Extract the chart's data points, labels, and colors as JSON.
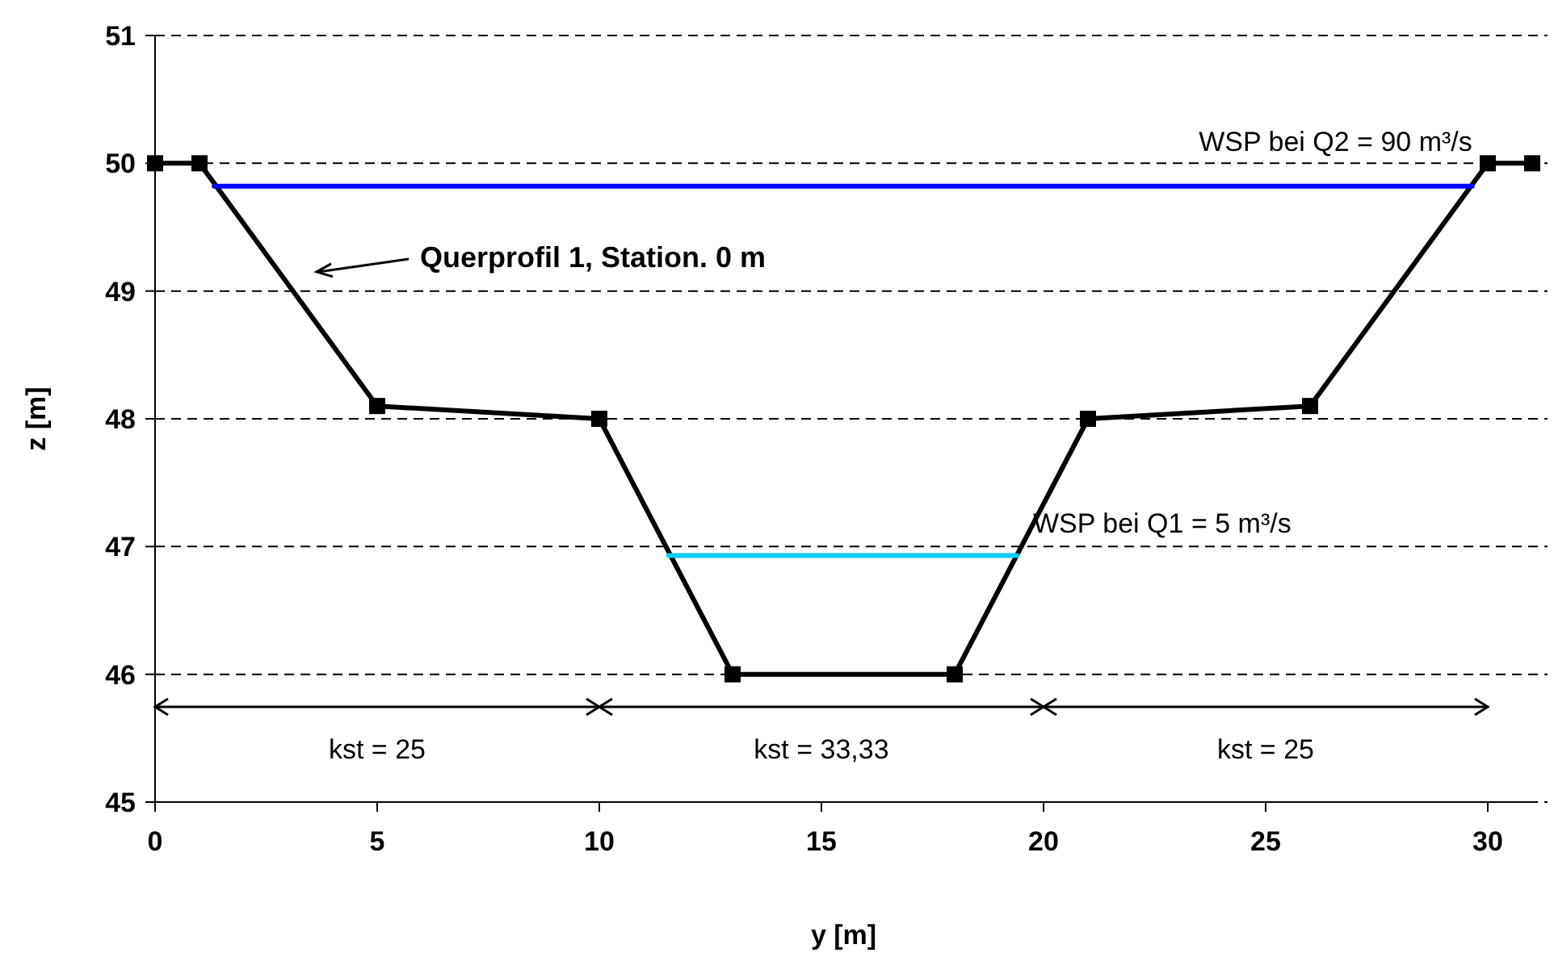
{
  "chart_data": {
    "type": "line",
    "xlabel": "y [m]",
    "ylabel": "z [m]",
    "xlim": [
      0,
      31
    ],
    "ylim": [
      45,
      51
    ],
    "xticks": [
      0,
      5,
      10,
      15,
      20,
      25,
      30
    ],
    "yticks": [
      45,
      46,
      47,
      48,
      49,
      50,
      51
    ],
    "grid": "y",
    "line_style": "solid",
    "series": [
      {
        "color": "#000000",
        "marker": "square",
        "x": [
          0,
          1,
          5,
          10,
          13,
          18,
          21,
          26,
          30,
          31
        ],
        "values": [
          50,
          50,
          48.1,
          48,
          46,
          46,
          48,
          48.1,
          50,
          50
        ]
      },
      {
        "name": "WSP bei Q2 = 90 m³/s",
        "color": "#0000ff",
        "marker": "none",
        "x": [
          1.33,
          29.65
        ],
        "values": [
          49.82,
          49.82
        ]
      },
      {
        "name": "WSP bei Q1 = 5 m³/s",
        "color": "#00ccff",
        "marker": "none",
        "x": [
          11.56,
          19.4
        ],
        "values": [
          46.93,
          46.93
        ]
      }
    ],
    "annotations": [
      "Querprofil 1, Station. 0 m",
      "kst = 25",
      "kst = 33,33",
      "kst = 25"
    ]
  }
}
